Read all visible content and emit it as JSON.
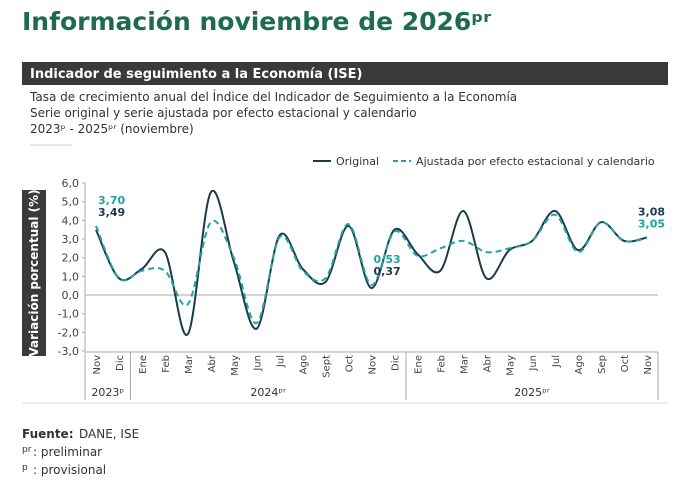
{
  "page_title": "Información noviembre de 2026ᵖʳ",
  "section_title": "Indicador de seguimiento a la Economía (ISE)",
  "chart_data": {
    "type": "line",
    "subtitle": [
      "Tasa de crecimiento anual del Índice del Indicador de Seguimiento a la Economía",
      "Serie original y serie ajustada por efecto estacional y calendario",
      "2023ᵖ - 2025ᵖʳ (noviembre)"
    ],
    "y_label": "Variación porcentual (%)",
    "categories": [
      "Nov",
      "Dic",
      "Ene",
      "Feb",
      "Mar",
      "Abr",
      "May",
      "Jun",
      "Jul",
      "Ago",
      "Sept",
      "Oct",
      "Nov",
      "Dic",
      "Ene",
      "Feb",
      "Mar",
      "Abr",
      "May",
      "Jun",
      "Jul",
      "Ago",
      "Sep",
      "Oct",
      "Nov"
    ],
    "x_groups": [
      {
        "label": "2023ᵖ",
        "span": 2
      },
      {
        "label": "2024ᵖʳ",
        "span": 12
      },
      {
        "label": "2025ᵖʳ",
        "span": 11
      }
    ],
    "series": [
      {
        "name": "Original",
        "color": "#1b3a4b",
        "dashed": false,
        "values": [
          3.49,
          0.9,
          1.4,
          2.3,
          -2.1,
          5.5,
          1.8,
          -1.8,
          3.2,
          1.4,
          0.7,
          3.7,
          0.37,
          3.5,
          2.2,
          1.3,
          4.5,
          0.9,
          2.4,
          2.9,
          4.5,
          2.4,
          3.9,
          2.9,
          3.08
        ],
        "value_labels": [
          "3,49",
          null,
          null,
          null,
          null,
          null,
          null,
          null,
          null,
          null,
          null,
          null,
          "0,37",
          null,
          null,
          null,
          null,
          null,
          null,
          null,
          null,
          null,
          null,
          null,
          "3,08"
        ]
      },
      {
        "name": "Ajustada por efecto estacional y calendario",
        "color": "#1fa3a3",
        "dashed": true,
        "values": [
          3.7,
          0.9,
          1.3,
          1.3,
          -0.5,
          3.9,
          2.0,
          -1.5,
          3.1,
          1.3,
          0.9,
          3.8,
          0.53,
          3.4,
          2.1,
          2.5,
          2.9,
          2.3,
          2.5,
          2.9,
          4.3,
          2.3,
          3.9,
          2.9,
          3.05
        ],
        "value_labels": [
          "3,70",
          null,
          null,
          null,
          null,
          null,
          null,
          null,
          null,
          null,
          null,
          null,
          "0,53",
          null,
          null,
          null,
          null,
          null,
          null,
          null,
          null,
          null,
          null,
          null,
          "3,05"
        ]
      }
    ],
    "ylim": [
      -3,
      6
    ],
    "yticks": [
      {
        "value": 6,
        "label": "6,0"
      },
      {
        "value": 5,
        "label": "5,0"
      },
      {
        "value": 4,
        "label": "4,0"
      },
      {
        "value": 3,
        "label": "3,0"
      },
      {
        "value": 2,
        "label": "2,0"
      },
      {
        "value": 1,
        "label": "1,0"
      },
      {
        "value": 0,
        "label": "0,0"
      },
      {
        "value": -1,
        "label": "-1,0"
      },
      {
        "value": -2,
        "label": "-2,0"
      },
      {
        "value": -3,
        "label": "-3,0"
      }
    ],
    "legend": "top-right"
  },
  "footnotes": [
    {
      "key": "Fuente:",
      "text": "DANE, ISE"
    },
    {
      "key": "pr",
      "text": ": preliminar"
    },
    {
      "key": "p",
      "text": ": provisional"
    }
  ]
}
